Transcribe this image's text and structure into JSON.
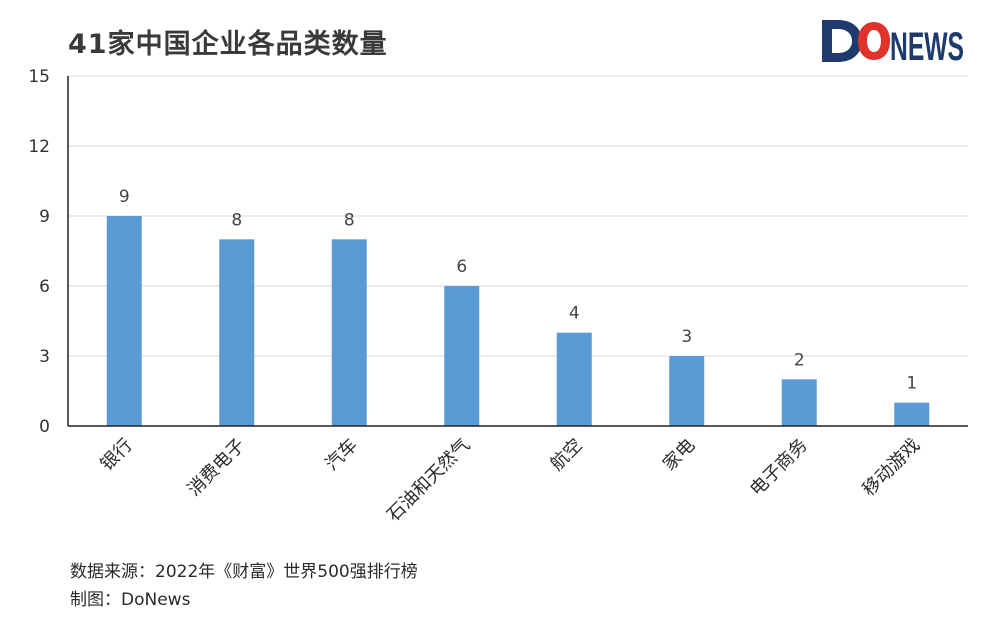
{
  "brand": {
    "logo_text": "DONEWS",
    "colors": {
      "navy": "#1f3a6d",
      "red": "#e0312b"
    }
  },
  "chart_data": {
    "type": "bar",
    "title": "41家中国企业各品类数量",
    "categories": [
      "银行",
      "消费电子",
      "汽车",
      "石油和天然气",
      "航空",
      "家电",
      "电子商务",
      "移动游戏"
    ],
    "values": [
      9,
      8,
      8,
      6,
      4,
      3,
      2,
      1
    ],
    "data_labels": [
      "9",
      "8",
      "8",
      "6",
      "4",
      "3",
      "2",
      "1"
    ],
    "ylim": [
      0,
      15
    ],
    "y_ticks": [
      "0",
      "3",
      "6",
      "9",
      "12",
      "15"
    ],
    "grid": true,
    "bar_color": "#5b9bd5"
  },
  "footer": {
    "source": "数据来源：2022年《财富》世界500强排行榜",
    "credit": "制图：DoNews"
  }
}
